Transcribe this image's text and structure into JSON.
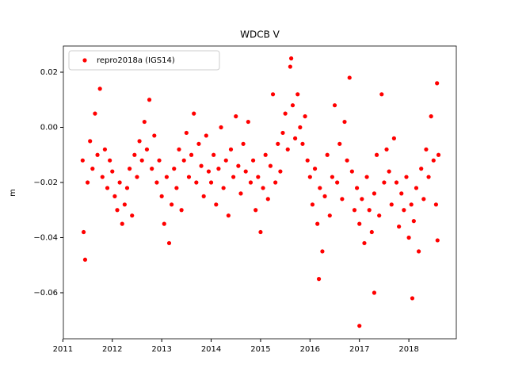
{
  "chart_data": {
    "type": "scatter",
    "title": "WDCB V",
    "ylabel": "m",
    "xlim": [
      2011.01,
      2018.96
    ],
    "xticks": [
      2011,
      2012,
      2013,
      2014,
      2015,
      2016,
      2017,
      2018
    ],
    "ylim": [
      -0.0767,
      0.0295
    ],
    "yticks": [
      {
        "value": 0.02,
        "label": "0.02"
      },
      {
        "value": 0,
        "label": "0.00"
      },
      {
        "value": -0.02,
        "label": "−0.02"
      },
      {
        "value": -0.04,
        "label": "−0.04"
      },
      {
        "value": -0.06,
        "label": "−0.06"
      }
    ],
    "grid": false,
    "legend": "upper left",
    "series": [
      {
        "name": "repro2018a (IGS14)",
        "color": "#ff0000",
        "x": [
          2011.4,
          2011.45,
          2011.5,
          2011.55,
          2011.6,
          2011.65,
          2011.7,
          2011.75,
          2011.8,
          2011.85,
          2011.9,
          2011.95,
          2012.0,
          2012.05,
          2012.1,
          2012.15,
          2012.2,
          2012.25,
          2012.3,
          2012.35,
          2012.4,
          2012.45,
          2012.5,
          2012.55,
          2012.6,
          2012.65,
          2012.7,
          2012.75,
          2012.8,
          2012.85,
          2012.9,
          2012.95,
          2013.0,
          2013.05,
          2013.1,
          2013.15,
          2013.2,
          2013.25,
          2013.3,
          2013.35,
          2013.4,
          2013.45,
          2013.5,
          2013.55,
          2013.6,
          2013.65,
          2013.7,
          2013.75,
          2013.8,
          2013.85,
          2013.9,
          2013.95,
          2014.0,
          2014.05,
          2014.1,
          2014.15,
          2014.2,
          2014.25,
          2014.3,
          2014.35,
          2014.4,
          2014.45,
          2014.5,
          2014.55,
          2014.6,
          2014.65,
          2014.7,
          2014.75,
          2014.8,
          2014.85,
          2014.9,
          2014.95,
          2015.0,
          2015.05,
          2015.1,
          2015.15,
          2015.2,
          2015.25,
          2015.3,
          2015.35,
          2015.4,
          2015.45,
          2015.5,
          2015.55,
          2015.6,
          2015.65,
          2015.7,
          2015.75,
          2015.8,
          2015.85,
          2015.9,
          2015.95,
          2016.0,
          2016.05,
          2016.1,
          2016.15,
          2016.2,
          2016.25,
          2016.3,
          2016.35,
          2016.4,
          2016.45,
          2016.5,
          2016.55,
          2016.6,
          2016.65,
          2016.7,
          2016.75,
          2016.8,
          2016.85,
          2016.9,
          2016.95,
          2017.0,
          2017.05,
          2017.1,
          2017.15,
          2017.2,
          2017.25,
          2017.3,
          2017.35,
          2017.4,
          2017.45,
          2017.5,
          2017.55,
          2017.6,
          2017.65,
          2017.7,
          2017.75,
          2017.8,
          2017.85,
          2017.9,
          2017.95,
          2018.0,
          2018.05,
          2018.1,
          2018.15,
          2018.2,
          2018.25,
          2018.3,
          2018.35,
          2018.4,
          2018.45,
          2018.5,
          2018.55,
          2018.6,
          2016.18,
          2017.0,
          2017.3,
          2018.07,
          2015.62,
          2018.57,
          2018.58,
          2011.42
        ],
        "values": [
          -0.012,
          -0.048,
          -0.02,
          -0.005,
          -0.015,
          0.005,
          -0.01,
          0.014,
          -0.018,
          -0.008,
          -0.022,
          -0.012,
          -0.016,
          -0.025,
          -0.03,
          -0.02,
          -0.035,
          -0.028,
          -0.022,
          -0.015,
          -0.032,
          -0.01,
          -0.018,
          -0.005,
          -0.012,
          0.002,
          -0.008,
          0.01,
          -0.015,
          -0.003,
          -0.02,
          -0.012,
          -0.025,
          -0.035,
          -0.018,
          -0.042,
          -0.028,
          -0.015,
          -0.022,
          -0.008,
          -0.03,
          -0.012,
          -0.002,
          -0.018,
          -0.01,
          0.005,
          -0.02,
          -0.006,
          -0.014,
          -0.025,
          -0.003,
          -0.016,
          -0.02,
          -0.01,
          -0.028,
          -0.015,
          0.0,
          -0.022,
          -0.012,
          -0.032,
          -0.008,
          -0.018,
          0.004,
          -0.014,
          -0.024,
          -0.006,
          -0.016,
          0.002,
          -0.02,
          -0.012,
          -0.03,
          -0.018,
          -0.038,
          -0.022,
          -0.01,
          -0.026,
          -0.014,
          0.012,
          -0.02,
          -0.006,
          -0.016,
          -0.002,
          0.005,
          -0.008,
          0.022,
          0.008,
          -0.004,
          0.012,
          0.0,
          -0.006,
          0.004,
          -0.012,
          -0.018,
          -0.028,
          -0.015,
          -0.035,
          -0.022,
          -0.045,
          -0.025,
          -0.01,
          -0.032,
          -0.018,
          0.008,
          -0.02,
          -0.006,
          -0.026,
          0.002,
          -0.012,
          0.018,
          -0.016,
          -0.03,
          -0.022,
          -0.035,
          -0.026,
          -0.042,
          -0.018,
          -0.03,
          -0.038,
          -0.024,
          -0.01,
          -0.032,
          0.012,
          -0.02,
          -0.008,
          -0.016,
          -0.028,
          -0.004,
          -0.02,
          -0.036,
          -0.024,
          -0.03,
          -0.018,
          -0.04,
          -0.028,
          -0.034,
          -0.022,
          -0.045,
          -0.015,
          -0.026,
          -0.008,
          -0.018,
          0.004,
          -0.012,
          -0.028,
          -0.01,
          -0.055,
          -0.072,
          -0.06,
          -0.062,
          0.025,
          0.016,
          -0.041,
          -0.038
        ]
      }
    ]
  }
}
